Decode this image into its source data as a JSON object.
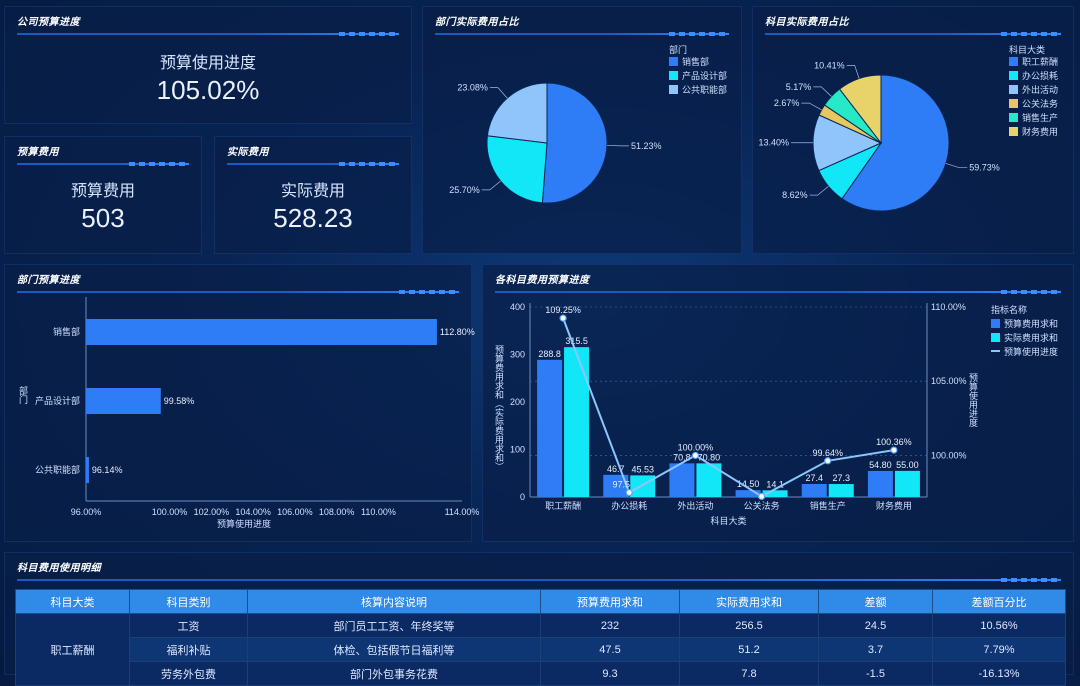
{
  "panels": {
    "company_progress": {
      "title": "公司预算进度",
      "label": "预算使用进度",
      "value": "105.02%"
    },
    "budget": {
      "title": "预算费用",
      "label": "预算费用",
      "value": "503"
    },
    "actual": {
      "title": "实际费用",
      "label": "实际费用",
      "value": "528.23"
    },
    "dept_share": {
      "title": "部门实际费用占比"
    },
    "subject_share": {
      "title": "科目实际费用占比"
    },
    "dept_progress": {
      "title": "部门预算进度"
    },
    "subject_budget": {
      "title": "各科目费用预算进度"
    },
    "detail": {
      "title": "科目费用使用明细"
    }
  },
  "colors": {
    "blue": "#2e7cf6",
    "cyan": "#12e7f7",
    "light_blue": "#8ec5fb",
    "gold": "#e6c760",
    "teal": "#27e9c8",
    "yellow": "#e8d26a",
    "line": "#8cc6ff"
  },
  "chart_data": [
    {
      "id": "dept_pie",
      "type": "pie",
      "legend_title": "部门",
      "legend_position": "top-right",
      "slices": [
        {
          "name": "销售部",
          "value": 51.23,
          "label": "51.23%",
          "color": "#2e7cf6"
        },
        {
          "name": "产品设计部",
          "value": 25.7,
          "label": "25.70%",
          "color": "#12e7f7"
        },
        {
          "name": "公共职能部",
          "value": 23.08,
          "label": "23.08%",
          "color": "#8ec5fb"
        }
      ]
    },
    {
      "id": "subject_pie",
      "type": "pie",
      "legend_title": "科目大类",
      "legend_position": "top-right",
      "slices": [
        {
          "name": "职工薪酬",
          "value": 59.73,
          "label": "59.73%",
          "color": "#2e7cf6"
        },
        {
          "name": "办公损耗",
          "value": 8.62,
          "label": "8.62%",
          "color": "#12e7f7"
        },
        {
          "name": "外出活动",
          "value": 13.4,
          "label": "13.40%",
          "color": "#8ec5fb"
        },
        {
          "name": "公关法务",
          "value": 2.67,
          "label": "2.67%",
          "color": "#e6c760"
        },
        {
          "name": "销售生产",
          "value": 5.17,
          "label": "5.17%",
          "color": "#27e9c8"
        },
        {
          "name": "财务费用",
          "value": 10.41,
          "label": "10.41%",
          "color": "#e8d26a"
        }
      ]
    },
    {
      "id": "dept_bar",
      "type": "bar",
      "orientation": "horizontal",
      "categories": [
        "销售部",
        "产品设计部",
        "公共职能部"
      ],
      "values": [
        112.8,
        99.58,
        96.14
      ],
      "value_labels": [
        "112.80%",
        "99.58%",
        "96.14%"
      ],
      "xlabel": "预算使用进度",
      "ylabel": "部门",
      "xlim": [
        96,
        114
      ],
      "xticks": [
        "96.00%",
        "100.00%",
        "102.00%",
        "104.00%",
        "106.00%",
        "108.00%",
        "110.00%",
        "114.00%"
      ]
    },
    {
      "id": "subject_combo",
      "type": "bar",
      "categories": [
        "职工薪酬",
        "办公损耗",
        "外出活动",
        "公关法务",
        "销售生产",
        "财务费用"
      ],
      "series": [
        {
          "name": "预算费用求和",
          "kind": "bar",
          "values": [
            288.8,
            46.7,
            70.8,
            14.5,
            27.4,
            54.8
          ],
          "labels": [
            "288.8",
            "46.7",
            "70.8",
            "14.50",
            "27.4",
            "54.80"
          ]
        },
        {
          "name": "实际费用求和",
          "kind": "bar",
          "values": [
            315.5,
            45.53,
            70.8,
            14.1,
            27.3,
            55.0
          ],
          "labels": [
            "315.5",
            "45.53",
            "70.80",
            "14.1",
            "27.3",
            "55.00"
          ]
        },
        {
          "name": "预算使用进度",
          "kind": "line",
          "axis": "right",
          "values": [
            109.25,
            97.5,
            100.0,
            97.24,
            99.64,
            100.36
          ],
          "labels": [
            "109.25%",
            "97.5",
            "100.00%",
            "",
            "99.64%",
            "100.36%"
          ]
        }
      ],
      "legend_title": "指标名称",
      "legend_position": "right",
      "xlabel": "科目大类",
      "ylabel": "预算费用求和（实际费用求和）",
      "y2label": "预算使用进度",
      "ylim": [
        0,
        400
      ],
      "yticks": [
        "0",
        "100",
        "200",
        "300",
        "400"
      ],
      "y2lim": [
        97.2,
        110
      ],
      "y2ticks": [
        {
          "v": 100,
          "label": "100.00%"
        },
        {
          "v": 105,
          "label": "105.00%"
        },
        {
          "v": 110,
          "label": "110.00%"
        }
      ]
    }
  ],
  "table": {
    "headers": [
      "科目大类",
      "科目类别",
      "核算内容说明",
      "预算费用求和",
      "实际费用求和",
      "差额",
      "差额百分比"
    ],
    "group": "职工薪酬",
    "rows": [
      [
        "工资",
        "部门员工工资、年终奖等",
        "232",
        "256.5",
        "24.5",
        "10.56%"
      ],
      [
        "福利补贴",
        "体检、包括假节日福利等",
        "47.5",
        "51.2",
        "3.7",
        "7.79%"
      ],
      [
        "劳务外包费",
        "部门外包事务花费",
        "9.3",
        "7.8",
        "-1.5",
        "-16.13%"
      ]
    ]
  }
}
